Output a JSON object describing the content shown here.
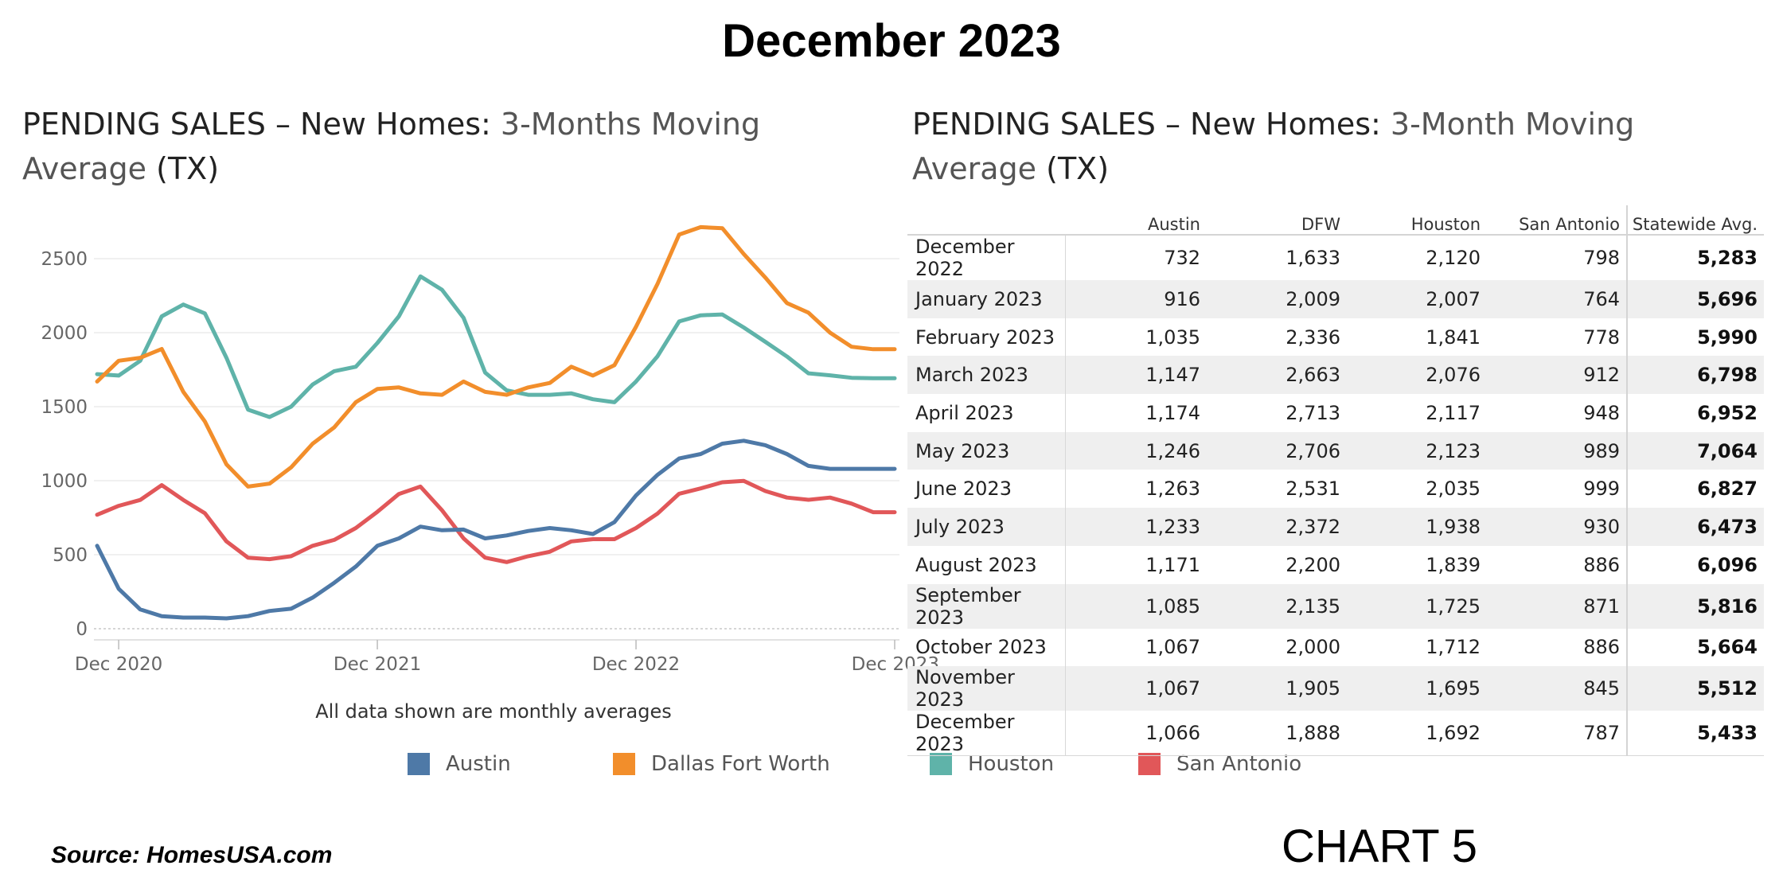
{
  "header": {
    "title": "December 2023"
  },
  "left_panel": {
    "title_main": "PENDING SALES – New Homes: ",
    "title_rest": "3-Months  Moving",
    "title_line2_a": "Average",
    "title_line2_b": " (TX)",
    "note": "All data shown are monthly averages"
  },
  "right_panel": {
    "title_main": "PENDING SALES – New Homes:  ",
    "title_rest": "3-Month Moving",
    "title_line2_a": "Average",
    "title_line2_b": " (TX)"
  },
  "legend": {
    "austin": "Austin",
    "dfw": "Dallas Fort Worth",
    "houston": "Houston",
    "san_antonio": "San Antonio"
  },
  "colors": {
    "austin": "#4e79a7",
    "dfw": "#f28e2b",
    "houston": "#5fb3a9",
    "san_antonio": "#e15759"
  },
  "footer": {
    "source": "Source:  HomesUSA.com",
    "chart_label": "CHART 5"
  },
  "chart_data": [
    {
      "type": "line",
      "x": [
        "Nov 2020",
        "Dec 2020",
        "Jan 2021",
        "Feb 2021",
        "Mar 2021",
        "Apr 2021",
        "May 2021",
        "Jun 2021",
        "Jul 2021",
        "Aug 2021",
        "Sep 2021",
        "Oct 2021",
        "Nov 2021",
        "Dec 2021",
        "Jan 2022",
        "Feb 2022",
        "Mar 2022",
        "Apr 2022",
        "May 2022",
        "Jun 2022",
        "Jul 2022",
        "Aug 2022",
        "Sep 2022",
        "Oct 2022",
        "Nov 2022",
        "Dec 2022",
        "Jan 2023",
        "Feb 2023",
        "Mar 2023",
        "Apr 2023",
        "May 2023",
        "Jun 2023",
        "Jul 2023",
        "Aug 2023",
        "Sep 2023",
        "Oct 2023",
        "Nov 2023",
        "Dec 2023"
      ],
      "x_ticks": [
        "Dec 2020",
        "Dec 2021",
        "Dec 2022",
        "Dec 2023"
      ],
      "y_ticks": [
        0,
        500,
        1000,
        1500,
        2000,
        2500
      ],
      "ylim": [
        0,
        2850
      ],
      "grid": true,
      "legend": "bottom",
      "series": [
        {
          "name": "Austin",
          "values": [
            560,
            270,
            130,
            85,
            75,
            75,
            70,
            85,
            120,
            135,
            210,
            310,
            420,
            560,
            610,
            690,
            665,
            670,
            610,
            630,
            660,
            680,
            665,
            640,
            720,
            900,
            1040,
            1150,
            1180,
            1250,
            1270,
            1240,
            1180,
            1100,
            1080,
            1080,
            1080,
            1080
          ]
        },
        {
          "name": "Dallas Fort Worth",
          "values": [
            1670,
            1810,
            1830,
            1890,
            1600,
            1400,
            1110,
            960,
            980,
            1090,
            1250,
            1360,
            1530,
            1620,
            1630,
            1590,
            1580,
            1670,
            1600,
            1580,
            1630,
            1660,
            1770,
            1710,
            1780,
            2040,
            2330,
            2663,
            2713,
            2706,
            2531,
            2372,
            2200,
            2135,
            2000,
            1905,
            1888,
            1888
          ]
        },
        {
          "name": "Houston",
          "values": [
            1720,
            1710,
            1810,
            2110,
            2190,
            2130,
            1830,
            1480,
            1430,
            1500,
            1650,
            1740,
            1770,
            1930,
            2110,
            2380,
            2290,
            2100,
            1730,
            1610,
            1580,
            1580,
            1590,
            1550,
            1530,
            1670,
            1841,
            2076,
            2117,
            2123,
            2035,
            1938,
            1839,
            1725,
            1712,
            1695,
            1692,
            1692
          ]
        },
        {
          "name": "San Antonio",
          "values": [
            770,
            830,
            870,
            970,
            870,
            780,
            590,
            480,
            470,
            490,
            560,
            600,
            680,
            790,
            910,
            960,
            800,
            610,
            480,
            450,
            490,
            520,
            590,
            605,
            605,
            680,
            778,
            912,
            948,
            989,
            999,
            930,
            886,
            871,
            886,
            845,
            787,
            787
          ]
        }
      ]
    },
    {
      "type": "table",
      "columns": [
        "",
        "Austin",
        "DFW",
        "Houston",
        "San Antonio",
        "Statewide Avg."
      ],
      "rows": [
        [
          "December 2022",
          "732",
          "1,633",
          "2,120",
          "798",
          "5,283"
        ],
        [
          "January 2023",
          "916",
          "2,009",
          "2,007",
          "764",
          "5,696"
        ],
        [
          "February 2023",
          "1,035",
          "2,336",
          "1,841",
          "778",
          "5,990"
        ],
        [
          "March 2023",
          "1,147",
          "2,663",
          "2,076",
          "912",
          "6,798"
        ],
        [
          "April 2023",
          "1,174",
          "2,713",
          "2,117",
          "948",
          "6,952"
        ],
        [
          "May 2023",
          "1,246",
          "2,706",
          "2,123",
          "989",
          "7,064"
        ],
        [
          "June 2023",
          "1,263",
          "2,531",
          "2,035",
          "999",
          "6,827"
        ],
        [
          "July 2023",
          "1,233",
          "2,372",
          "1,938",
          "930",
          "6,473"
        ],
        [
          "August 2023",
          "1,171",
          "2,200",
          "1,839",
          "886",
          "6,096"
        ],
        [
          "September 2023",
          "1,085",
          "2,135",
          "1,725",
          "871",
          "5,816"
        ],
        [
          "October 2023",
          "1,067",
          "2,000",
          "1,712",
          "886",
          "5,664"
        ],
        [
          "November 2023",
          "1,067",
          "1,905",
          "1,695",
          "845",
          "5,512"
        ],
        [
          "December 2023",
          "1,066",
          "1,888",
          "1,692",
          "787",
          "5,433"
        ]
      ]
    }
  ]
}
